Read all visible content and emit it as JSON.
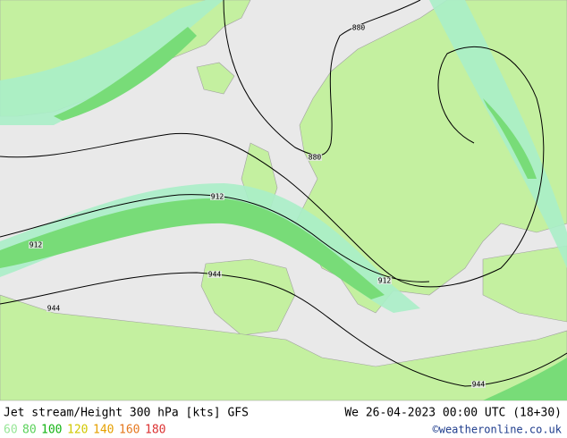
{
  "map": {
    "contour_labels": [
      {
        "value": 880
      },
      {
        "value": 880
      },
      {
        "value": 912
      },
      {
        "value": 912
      },
      {
        "value": 912
      },
      {
        "value": 944
      },
      {
        "value": 944
      },
      {
        "value": 944
      }
    ]
  },
  "footer": {
    "title": "Jet stream/Height 300 hPa [kts] GFS",
    "datetime": "We 26-04-2023 00:00 UTC (18+30)",
    "credit": "©weatheronline.co.uk",
    "legend": {
      "values": [
        60,
        80,
        100,
        120,
        140,
        160,
        180
      ],
      "colors": [
        "#96e696",
        "#5ad25a",
        "#14b414",
        "#d2c800",
        "#e6a000",
        "#e6781e",
        "#dc3232"
      ]
    }
  }
}
